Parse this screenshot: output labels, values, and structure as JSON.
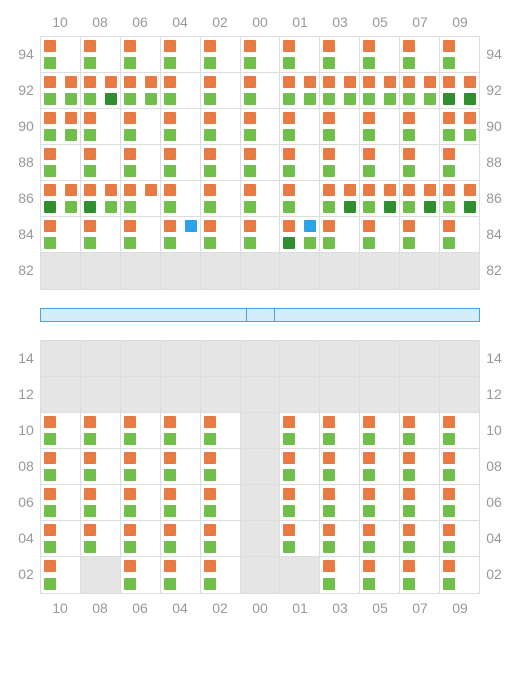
{
  "col_labels": [
    "10",
    "08",
    "06",
    "04",
    "02",
    "00",
    "01",
    "03",
    "05",
    "07",
    "09"
  ],
  "colors": {
    "orange": "#e87a44",
    "green": "#6fbf4a",
    "darkgreen": "#2f8f2f",
    "blue": "#2aa3e8",
    "empty_bg": "#e5e5e5",
    "grid_border": "#dddddd",
    "label": "#999999",
    "bar_fill": "#d4edfb",
    "bar_border": "#4aa3df"
  },
  "top": {
    "row_labels": [
      "94",
      "92",
      "90",
      "88",
      "86",
      "84",
      "82"
    ],
    "cells": [
      [
        [
          [
            "o",
            null
          ],
          [
            "g",
            null
          ]
        ],
        [
          [
            "o",
            null
          ],
          [
            "g",
            null
          ]
        ],
        [
          [
            "o",
            null
          ],
          [
            "g",
            null
          ]
        ],
        [
          [
            "o",
            null
          ],
          [
            "g",
            null
          ]
        ],
        [
          [
            "o",
            null
          ],
          [
            "g",
            null
          ]
        ],
        [
          [
            "o",
            null
          ],
          [
            "g",
            null
          ]
        ],
        [
          [
            "o",
            null
          ],
          [
            "g",
            null
          ]
        ],
        [
          [
            "o",
            null
          ],
          [
            "g",
            null
          ]
        ],
        [
          [
            "o",
            null
          ],
          [
            "g",
            null
          ]
        ],
        [
          [
            "o",
            null
          ],
          [
            "g",
            null
          ]
        ],
        [
          [
            "o",
            null
          ],
          [
            "g",
            null
          ]
        ]
      ],
      [
        [
          [
            "o",
            "o"
          ],
          [
            "g",
            "g"
          ]
        ],
        [
          [
            "o",
            "o"
          ],
          [
            "g",
            "d"
          ]
        ],
        [
          [
            "o",
            "o"
          ],
          [
            "g",
            "g"
          ]
        ],
        [
          [
            "o",
            null
          ],
          [
            "g",
            null
          ]
        ],
        [
          [
            "o",
            null
          ],
          [
            "g",
            null
          ]
        ],
        [
          [
            "o",
            null
          ],
          [
            "g",
            null
          ]
        ],
        [
          [
            "o",
            "o"
          ],
          [
            "g",
            "g"
          ]
        ],
        [
          [
            "o",
            "o"
          ],
          [
            "g",
            "g"
          ]
        ],
        [
          [
            "o",
            "o"
          ],
          [
            "g",
            "g"
          ]
        ],
        [
          [
            "o",
            "o"
          ],
          [
            "g",
            "g"
          ]
        ],
        [
          [
            "o",
            "o"
          ],
          [
            "d",
            "d"
          ]
        ]
      ],
      [
        [
          [
            "o",
            "o"
          ],
          [
            "g",
            "g"
          ]
        ],
        [
          [
            "o",
            null
          ],
          [
            "g",
            null
          ]
        ],
        [
          [
            "o",
            null
          ],
          [
            "g",
            null
          ]
        ],
        [
          [
            "o",
            null
          ],
          [
            "g",
            null
          ]
        ],
        [
          [
            "o",
            null
          ],
          [
            "g",
            null
          ]
        ],
        [
          [
            "o",
            null
          ],
          [
            "g",
            null
          ]
        ],
        [
          [
            "o",
            null
          ],
          [
            "g",
            null
          ]
        ],
        [
          [
            "o",
            null
          ],
          [
            "g",
            null
          ]
        ],
        [
          [
            "o",
            null
          ],
          [
            "g",
            null
          ]
        ],
        [
          [
            "o",
            null
          ],
          [
            "g",
            null
          ]
        ],
        [
          [
            "o",
            "o"
          ],
          [
            "g",
            "g"
          ]
        ]
      ],
      [
        [
          [
            "o",
            null
          ],
          [
            "g",
            null
          ]
        ],
        [
          [
            "o",
            null
          ],
          [
            "g",
            null
          ]
        ],
        [
          [
            "o",
            null
          ],
          [
            "g",
            null
          ]
        ],
        [
          [
            "o",
            null
          ],
          [
            "g",
            null
          ]
        ],
        [
          [
            "o",
            null
          ],
          [
            "g",
            null
          ]
        ],
        [
          [
            "o",
            null
          ],
          [
            "g",
            null
          ]
        ],
        [
          [
            "o",
            null
          ],
          [
            "g",
            null
          ]
        ],
        [
          [
            "o",
            null
          ],
          [
            "g",
            null
          ]
        ],
        [
          [
            "o",
            null
          ],
          [
            "g",
            null
          ]
        ],
        [
          [
            "o",
            null
          ],
          [
            "g",
            null
          ]
        ],
        [
          [
            "o",
            null
          ],
          [
            "g",
            null
          ]
        ]
      ],
      [
        [
          [
            "o",
            "o"
          ],
          [
            "d",
            "g"
          ]
        ],
        [
          [
            "o",
            "o"
          ],
          [
            "d",
            "g"
          ]
        ],
        [
          [
            "o",
            "o"
          ],
          [
            "g",
            null
          ]
        ],
        [
          [
            "o",
            null
          ],
          [
            "g",
            null
          ]
        ],
        [
          [
            "o",
            null
          ],
          [
            "g",
            null
          ]
        ],
        [
          [
            "o",
            null
          ],
          [
            "g",
            null
          ]
        ],
        [
          [
            "o",
            null
          ],
          [
            "g",
            null
          ]
        ],
        [
          [
            "o",
            "o"
          ],
          [
            "g",
            "d"
          ]
        ],
        [
          [
            "o",
            "o"
          ],
          [
            "g",
            "d"
          ]
        ],
        [
          [
            "o",
            "o"
          ],
          [
            "g",
            "d"
          ]
        ],
        [
          [
            "o",
            "o"
          ],
          [
            "g",
            "d"
          ]
        ]
      ],
      [
        [
          [
            "o",
            null
          ],
          [
            "g",
            null
          ]
        ],
        [
          [
            "o",
            null
          ],
          [
            "g",
            null
          ]
        ],
        [
          [
            "o",
            null
          ],
          [
            "g",
            null
          ]
        ],
        [
          [
            "o",
            "b"
          ],
          [
            "g",
            null
          ]
        ],
        [
          [
            "o",
            null
          ],
          [
            "g",
            null
          ]
        ],
        [
          [
            "o",
            null
          ],
          [
            "g",
            null
          ]
        ],
        [
          [
            "o",
            "b"
          ],
          [
            "d",
            "g"
          ]
        ],
        [
          [
            "o",
            null
          ],
          [
            "g",
            null
          ]
        ],
        [
          [
            "o",
            null
          ],
          [
            "g",
            null
          ]
        ],
        [
          [
            "o",
            null
          ],
          [
            "g",
            null
          ]
        ],
        [
          [
            "o",
            null
          ],
          [
            "g",
            null
          ]
        ]
      ],
      [
        "E",
        "E",
        "E",
        "E",
        "E",
        "E",
        "E",
        "E",
        "E",
        "E",
        "E"
      ]
    ]
  },
  "bottom": {
    "row_labels": [
      "14",
      "12",
      "10",
      "08",
      "06",
      "04",
      "02"
    ],
    "cells": [
      [
        "E",
        "E",
        "E",
        "E",
        "E",
        "E",
        "E",
        "E",
        "E",
        "E",
        "E"
      ],
      [
        "E",
        "E",
        "E",
        "E",
        "E",
        "E",
        "E",
        "E",
        "E",
        "E",
        "E"
      ],
      [
        [
          [
            "o",
            null
          ],
          [
            "g",
            null
          ]
        ],
        [
          [
            "o",
            null
          ],
          [
            "g",
            null
          ]
        ],
        [
          [
            "o",
            null
          ],
          [
            "g",
            null
          ]
        ],
        [
          [
            "o",
            null
          ],
          [
            "g",
            null
          ]
        ],
        [
          [
            "o",
            null
          ],
          [
            "g",
            null
          ]
        ],
        "E",
        [
          [
            "o",
            null
          ],
          [
            "g",
            null
          ]
        ],
        [
          [
            "o",
            null
          ],
          [
            "g",
            null
          ]
        ],
        [
          [
            "o",
            null
          ],
          [
            "g",
            null
          ]
        ],
        [
          [
            "o",
            null
          ],
          [
            "g",
            null
          ]
        ],
        [
          [
            "o",
            null
          ],
          [
            "g",
            null
          ]
        ]
      ],
      [
        [
          [
            "o",
            null
          ],
          [
            "g",
            null
          ]
        ],
        [
          [
            "o",
            null
          ],
          [
            "g",
            null
          ]
        ],
        [
          [
            "o",
            null
          ],
          [
            "g",
            null
          ]
        ],
        [
          [
            "o",
            null
          ],
          [
            "g",
            null
          ]
        ],
        [
          [
            "o",
            null
          ],
          [
            "g",
            null
          ]
        ],
        "E",
        [
          [
            "o",
            null
          ],
          [
            "g",
            null
          ]
        ],
        [
          [
            "o",
            null
          ],
          [
            "g",
            null
          ]
        ],
        [
          [
            "o",
            null
          ],
          [
            "g",
            null
          ]
        ],
        [
          [
            "o",
            null
          ],
          [
            "g",
            null
          ]
        ],
        [
          [
            "o",
            null
          ],
          [
            "g",
            null
          ]
        ]
      ],
      [
        [
          [
            "o",
            null
          ],
          [
            "g",
            null
          ]
        ],
        [
          [
            "o",
            null
          ],
          [
            "g",
            null
          ]
        ],
        [
          [
            "o",
            null
          ],
          [
            "g",
            null
          ]
        ],
        [
          [
            "o",
            null
          ],
          [
            "g",
            null
          ]
        ],
        [
          [
            "o",
            null
          ],
          [
            "g",
            null
          ]
        ],
        "E",
        [
          [
            "o",
            null
          ],
          [
            "g",
            null
          ]
        ],
        [
          [
            "o",
            null
          ],
          [
            "g",
            null
          ]
        ],
        [
          [
            "o",
            null
          ],
          [
            "g",
            null
          ]
        ],
        [
          [
            "o",
            null
          ],
          [
            "g",
            null
          ]
        ],
        [
          [
            "o",
            null
          ],
          [
            "g",
            null
          ]
        ]
      ],
      [
        [
          [
            "o",
            null
          ],
          [
            "g",
            null
          ]
        ],
        [
          [
            "o",
            null
          ],
          [
            "g",
            null
          ]
        ],
        [
          [
            "o",
            null
          ],
          [
            "g",
            null
          ]
        ],
        [
          [
            "o",
            null
          ],
          [
            "g",
            null
          ]
        ],
        [
          [
            "o",
            null
          ],
          [
            "g",
            null
          ]
        ],
        "E",
        [
          [
            "o",
            null
          ],
          [
            "g",
            null
          ]
        ],
        [
          [
            "o",
            null
          ],
          [
            "g",
            null
          ]
        ],
        [
          [
            "o",
            null
          ],
          [
            "g",
            null
          ]
        ],
        [
          [
            "o",
            null
          ],
          [
            "g",
            null
          ]
        ],
        [
          [
            "o",
            null
          ],
          [
            "g",
            null
          ]
        ]
      ],
      [
        [
          [
            "o",
            null
          ],
          [
            "g",
            null
          ]
        ],
        "E",
        [
          [
            "o",
            null
          ],
          [
            "g",
            null
          ]
        ],
        [
          [
            "o",
            null
          ],
          [
            "g",
            null
          ]
        ],
        [
          [
            "o",
            null
          ],
          [
            "g",
            null
          ]
        ],
        "E",
        "E",
        [
          [
            "o",
            null
          ],
          [
            "g",
            null
          ]
        ],
        [
          [
            "o",
            null
          ],
          [
            "g",
            null
          ]
        ],
        [
          [
            "o",
            null
          ],
          [
            "g",
            null
          ]
        ],
        [
          [
            "o",
            null
          ],
          [
            "g",
            null
          ]
        ]
      ]
    ]
  }
}
